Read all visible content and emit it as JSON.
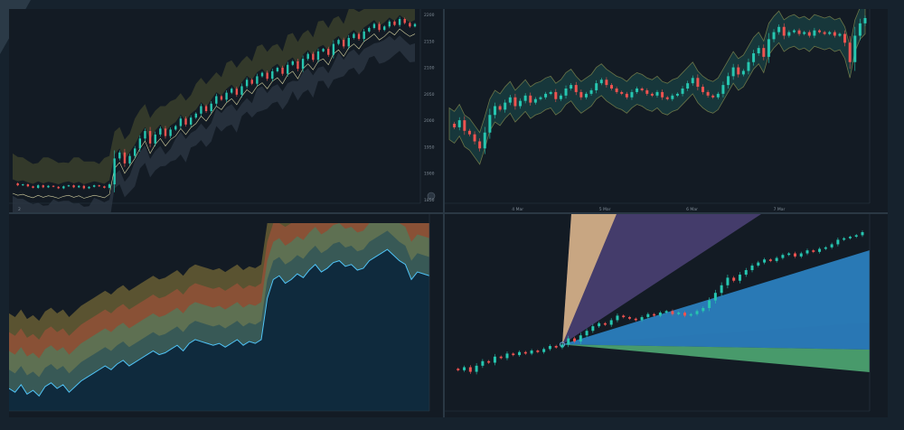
{
  "colors": {
    "background": "#131b24",
    "up": "#26c6b0",
    "down": "#ef5350",
    "band_fill": "#8a8a3a",
    "glow": "#2a9d8f",
    "mid_line": "#d4d0a0",
    "area_line": "#4fc3f7",
    "fan_top": "#f4c98a",
    "fan_violet": "#5a4a8a",
    "fan_blue": "#2f8fd8",
    "fan_green": "#5fd08a"
  },
  "chart_data": [
    {
      "type": "candlestick",
      "panel": "top-left",
      "x_labels": [
        "2",
        "",
        "",
        "",
        "",
        "",
        "",
        "",
        ""
      ],
      "y_labels": [
        "2200",
        "2150",
        "2100",
        "2050",
        "2000",
        "1950",
        "1900",
        "1850"
      ],
      "ylim": [
        1840,
        2230
      ],
      "series": [
        {
          "values": [
            1880,
            1876,
            1878,
            1874,
            1871,
            1876,
            1872,
            1875,
            1873,
            1870,
            1874,
            1876,
            1872,
            1875,
            1870,
            1873,
            1876,
            1874,
            1871,
            1878,
            1930,
            1942,
            1920,
            1935,
            1950,
            1970,
            1985,
            1960,
            1978,
            1990,
            1975,
            1988,
            1995,
            2010,
            1998,
            2012,
            2020,
            2035,
            2025,
            2040,
            2055,
            2048,
            2062,
            2070,
            2058,
            2075,
            2088,
            2080,
            2095,
            2102,
            2090,
            2105,
            2112,
            2100,
            2118,
            2125,
            2110,
            2130,
            2140,
            2128,
            2145,
            2150,
            2138,
            2160,
            2168,
            2155,
            2172,
            2180,
            2170,
            2185,
            2192,
            2200,
            2188,
            2195,
            2205,
            2198,
            2210,
            2202,
            2195,
            2200
          ]
        }
      ]
    },
    {
      "type": "candlestick",
      "panel": "top-right",
      "x_labels": [
        "",
        "",
        "4 Mar",
        "",
        "",
        "5 Mar",
        "",
        "",
        "6 Mar",
        "",
        "",
        "7 Mar",
        "",
        "",
        ""
      ],
      "y_labels": [
        "",
        "",
        "",
        "",
        "",
        "",
        "",
        "",
        ""
      ],
      "ylim": [
        0,
        100
      ],
      "series": [
        {
          "values": [
            40,
            38,
            42,
            36,
            34,
            30,
            26,
            35,
            45,
            50,
            48,
            52,
            55,
            50,
            53,
            56,
            52,
            54,
            55,
            57,
            58,
            54,
            56,
            60,
            62,
            58,
            55,
            57,
            59,
            63,
            65,
            62,
            60,
            58,
            57,
            55,
            58,
            60,
            59,
            57,
            56,
            58,
            55,
            54,
            56,
            57,
            60,
            63,
            66,
            61,
            58,
            56,
            55,
            57,
            62,
            67,
            72,
            68,
            70,
            75,
            80,
            83,
            78,
            88,
            92,
            95,
            90,
            92,
            93,
            91,
            92,
            90,
            93,
            92,
            91,
            92,
            90,
            91,
            86,
            75,
            90,
            97,
            100
          ]
        }
      ]
    },
    {
      "type": "area",
      "panel": "bottom-left",
      "x_labels": [],
      "y_labels": [
        "",
        "",
        "",
        "",
        "",
        "",
        "",
        "",
        "",
        "",
        ""
      ],
      "ylim": [
        0,
        100
      ],
      "series": [
        {
          "values": [
            12,
            10,
            14,
            9,
            11,
            8,
            13,
            15,
            12,
            14,
            10,
            13,
            16,
            18,
            20,
            22,
            24,
            22,
            25,
            27,
            24,
            26,
            28,
            30,
            32,
            30,
            31,
            33,
            35,
            32,
            36,
            38,
            37,
            36,
            35,
            36,
            34,
            36,
            38,
            35,
            37,
            36,
            38,
            60,
            70,
            72,
            68,
            70,
            73,
            71,
            75,
            78,
            74,
            76,
            79,
            80,
            77,
            78,
            75,
            76,
            80,
            82,
            84,
            86,
            83,
            80,
            78,
            70,
            74,
            73,
            72
          ]
        }
      ]
    },
    {
      "type": "candlestick",
      "panel": "bottom-right",
      "x_labels": [],
      "y_labels": [
        "",
        "",
        "",
        "",
        "",
        "",
        "",
        "",
        "",
        "",
        "",
        "",
        "",
        "",
        "",
        "",
        ""
      ],
      "ylim": [
        0,
        100
      ],
      "series": [
        {
          "values": [
            10,
            9,
            11,
            8,
            12,
            15,
            14,
            18,
            17,
            20,
            19,
            21,
            20,
            22,
            21,
            23,
            25,
            24,
            26,
            30,
            28,
            32,
            35,
            38,
            40,
            39,
            42,
            45,
            44,
            43,
            42,
            44,
            46,
            45,
            47,
            48,
            46,
            47,
            45,
            46,
            48,
            50,
            55,
            60,
            65,
            70,
            68,
            72,
            75,
            78,
            80,
            82,
            81,
            83,
            85,
            86,
            84,
            86,
            88,
            87,
            89,
            90,
            92,
            95,
            96,
            97,
            98,
            100
          ]
        }
      ]
    }
  ]
}
